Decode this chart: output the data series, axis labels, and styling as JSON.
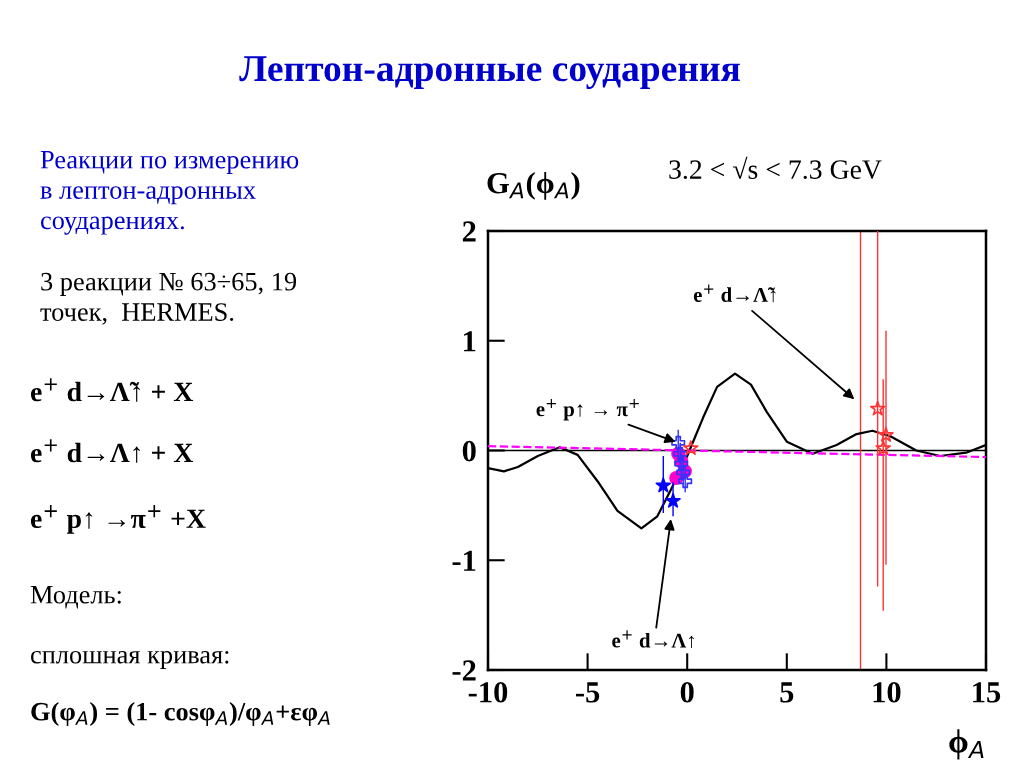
{
  "chart_data": {
    "type": "line",
    "title": "Лептон-адронные соударения",
    "subtitle": "3.2 < √s < 7.3 GeV",
    "xlabel": "ϕ$_{A}$",
    "ylabel": "G$_{A}$(ϕ$_{A}$)",
    "xlim": [
      -10,
      15
    ],
    "xticks": [
      -10,
      -5,
      0,
      5,
      10,
      15
    ],
    "ylim": [
      -2,
      2
    ],
    "yticks": [
      -2,
      -1,
      0,
      1,
      2
    ],
    "grid": false,
    "legend": false,
    "series": [
      {
        "color": "#000000",
        "marker": "none",
        "line_style": "solid",
        "x": [
          -10,
          -9.2,
          -8.5,
          -7.5,
          -6.4,
          -5.5,
          -4.5,
          -3.5,
          -2.3,
          -1.5,
          -0.8,
          0,
          0.8,
          1.5,
          2.4,
          3.2,
          4,
          5,
          6.3,
          7.5,
          8.5,
          9.3,
          10.2,
          11.5,
          12.7,
          14,
          15
        ],
        "values": [
          -0.16,
          -0.19,
          -0.15,
          -0.05,
          0.03,
          -0.04,
          -0.28,
          -0.55,
          -0.71,
          -0.6,
          -0.35,
          -0.05,
          0.3,
          0.58,
          0.7,
          0.6,
          0.35,
          0.08,
          -0.03,
          0.05,
          0.15,
          0.18,
          0.13,
          0.0,
          -0.05,
          -0.02,
          0.05
        ]
      },
      {
        "type": "line",
        "color": "#ff00ff",
        "marker": "none",
        "line_style": "dashed",
        "x": [
          -10,
          15
        ],
        "values": [
          0.04,
          -0.06
        ]
      },
      {
        "type": "scatter",
        "color": "#ff00cc",
        "marker": "circle",
        "x": [
          -0.45,
          -0.3,
          -0.12,
          -0.55
        ],
        "values": [
          -0.03,
          -0.1,
          -0.19,
          -0.25
        ]
      },
      {
        "type": "scatter",
        "color": "#3333ff",
        "marker": "cross",
        "x": [
          -0.45,
          -0.35,
          -0.3,
          -0.2,
          -0.1
        ],
        "values": [
          0.07,
          -0.03,
          -0.12,
          -0.2,
          -0.28
        ],
        "errors": [
          0.12,
          0.1,
          0.1,
          0.1,
          0.1
        ]
      },
      {
        "type": "scatter",
        "color": "#0000ff",
        "marker": "star",
        "x": [
          -1.2,
          -0.71
        ],
        "values": [
          -0.32,
          -0.46
        ],
        "errors": [
          [
            -0.57,
            -0.05
          ],
          [
            -0.6,
            -0.29
          ]
        ]
      },
      {
        "type": "scatter",
        "color": "#ff3333",
        "marker": "star",
        "x": [
          0.18,
          9.56,
          9.98,
          9.84
        ],
        "values": [
          0.02,
          0.38,
          0.14,
          0.02
        ],
        "errors": [
          null,
          [
            -1.24,
            2.0
          ],
          [
            -1.04,
            1.09
          ],
          [
            -1.46,
            0.65
          ]
        ]
      }
    ],
    "ref_lines": [
      {
        "axis": "y",
        "value": 0,
        "color": "#000000",
        "line_style": "solid"
      },
      {
        "axis": "x",
        "value": 8.7,
        "color": "#ff3333",
        "line_style": "solid"
      }
    ],
    "annotations": [
      "Реакции по измерению\nв лептон-адронных\nсоударениях.",
      "3 реакции № 63÷65, 19\nточек,  HERMES.",
      "e$^{+}$ d→Λ̃↑ + X",
      "e$^{+}$ d→Λ↑ + X",
      "e$^{+}$ p↑ →π$^{+}$ +X",
      "Модель:",
      "сплошная кривая:",
      "G(φ$_{A}$) = (1- cosφ$_{A}$)/φ$_{A}$+εφ$_{A}$",
      {
        "text": "e$^{+}$ d→Λ̃↑",
        "x": 8.5,
        "y": 0.45
      },
      {
        "text": "e$^{+}$ p↑ → π$^{+}$",
        "x": -0.45,
        "y": 0.07
      },
      {
        "text": "e$^{+}$ d→Λ↑",
        "x": -0.8,
        "y": -0.6
      }
    ]
  }
}
